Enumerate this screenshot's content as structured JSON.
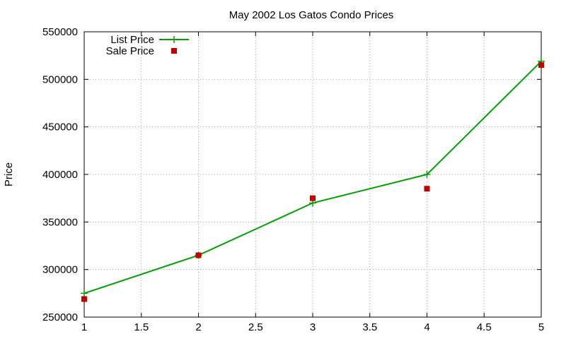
{
  "chart_data": {
    "type": "line",
    "title": "May 2002 Los Gatos Condo Prices",
    "xlabel": "",
    "ylabel": "Price",
    "xlim": [
      1,
      5
    ],
    "ylim": [
      250000,
      550000
    ],
    "x_ticks": [
      1,
      1.5,
      2,
      2.5,
      3,
      3.5,
      4,
      4.5,
      5
    ],
    "x_tick_labels": [
      "1",
      "1.5",
      "2",
      "2.5",
      "3",
      "3.5",
      "4",
      "4.5",
      "5"
    ],
    "y_ticks": [
      250000,
      300000,
      350000,
      400000,
      450000,
      500000,
      550000
    ],
    "y_tick_labels": [
      "250000",
      "300000",
      "350000",
      "400000",
      "450000",
      "500000",
      "550000"
    ],
    "grid": true,
    "legend_position": "top-left",
    "series": [
      {
        "name": "List Price",
        "style": "line-with-plus-markers",
        "color": "#00a000",
        "x": [
          1,
          2,
          3,
          4,
          5
        ],
        "y": [
          275000,
          315000,
          370000,
          400000,
          519000
        ]
      },
      {
        "name": "Sale Price",
        "style": "square-markers",
        "color": "#c00000",
        "x": [
          1,
          2,
          3,
          4,
          5
        ],
        "y": [
          269000,
          315000,
          375000,
          385000,
          515000
        ]
      }
    ]
  }
}
